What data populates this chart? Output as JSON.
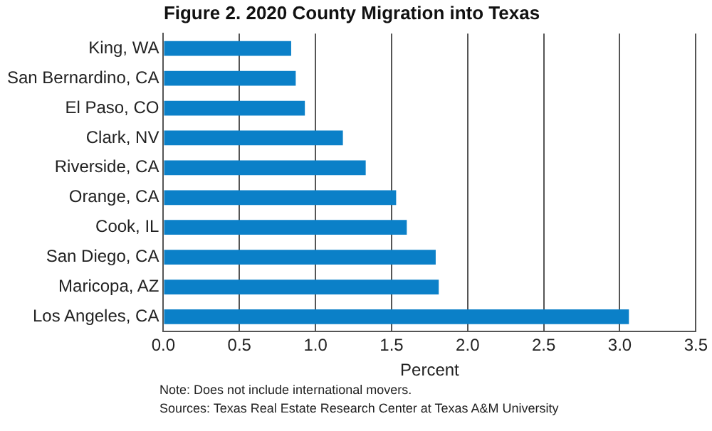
{
  "chart_data": {
    "type": "bar",
    "orientation": "horizontal",
    "title": "Figure 2. 2020 County Migration into Texas",
    "xlabel": "Percent",
    "categories": [
      "King, WA",
      "San Bernardino, CA",
      "El Paso, CO",
      "Clark, NV",
      "Riverside, CA",
      "Orange, CA",
      "Cook, IL",
      "San Diego, CA",
      "Maricopa, AZ",
      "Los Angeles, CA"
    ],
    "values": [
      0.84,
      0.87,
      0.93,
      1.18,
      1.33,
      1.53,
      1.6,
      1.79,
      1.81,
      3.06
    ],
    "color": "#0b80c8",
    "xlim": [
      0,
      3.5
    ],
    "xticks": [
      {
        "value": 0,
        "label": "0.0"
      },
      0.5,
      {
        "value": 1,
        "label": "1.0"
      },
      1.5,
      {
        "value": 2,
        "label": "2.0"
      },
      2.5,
      {
        "value": 3,
        "label": "3.0"
      },
      3.5
    ],
    "grid": "x",
    "annotations": [
      "Note: Does not include international movers.",
      "Sources: Texas Real Estate Research Center at Texas A&M University"
    ]
  }
}
